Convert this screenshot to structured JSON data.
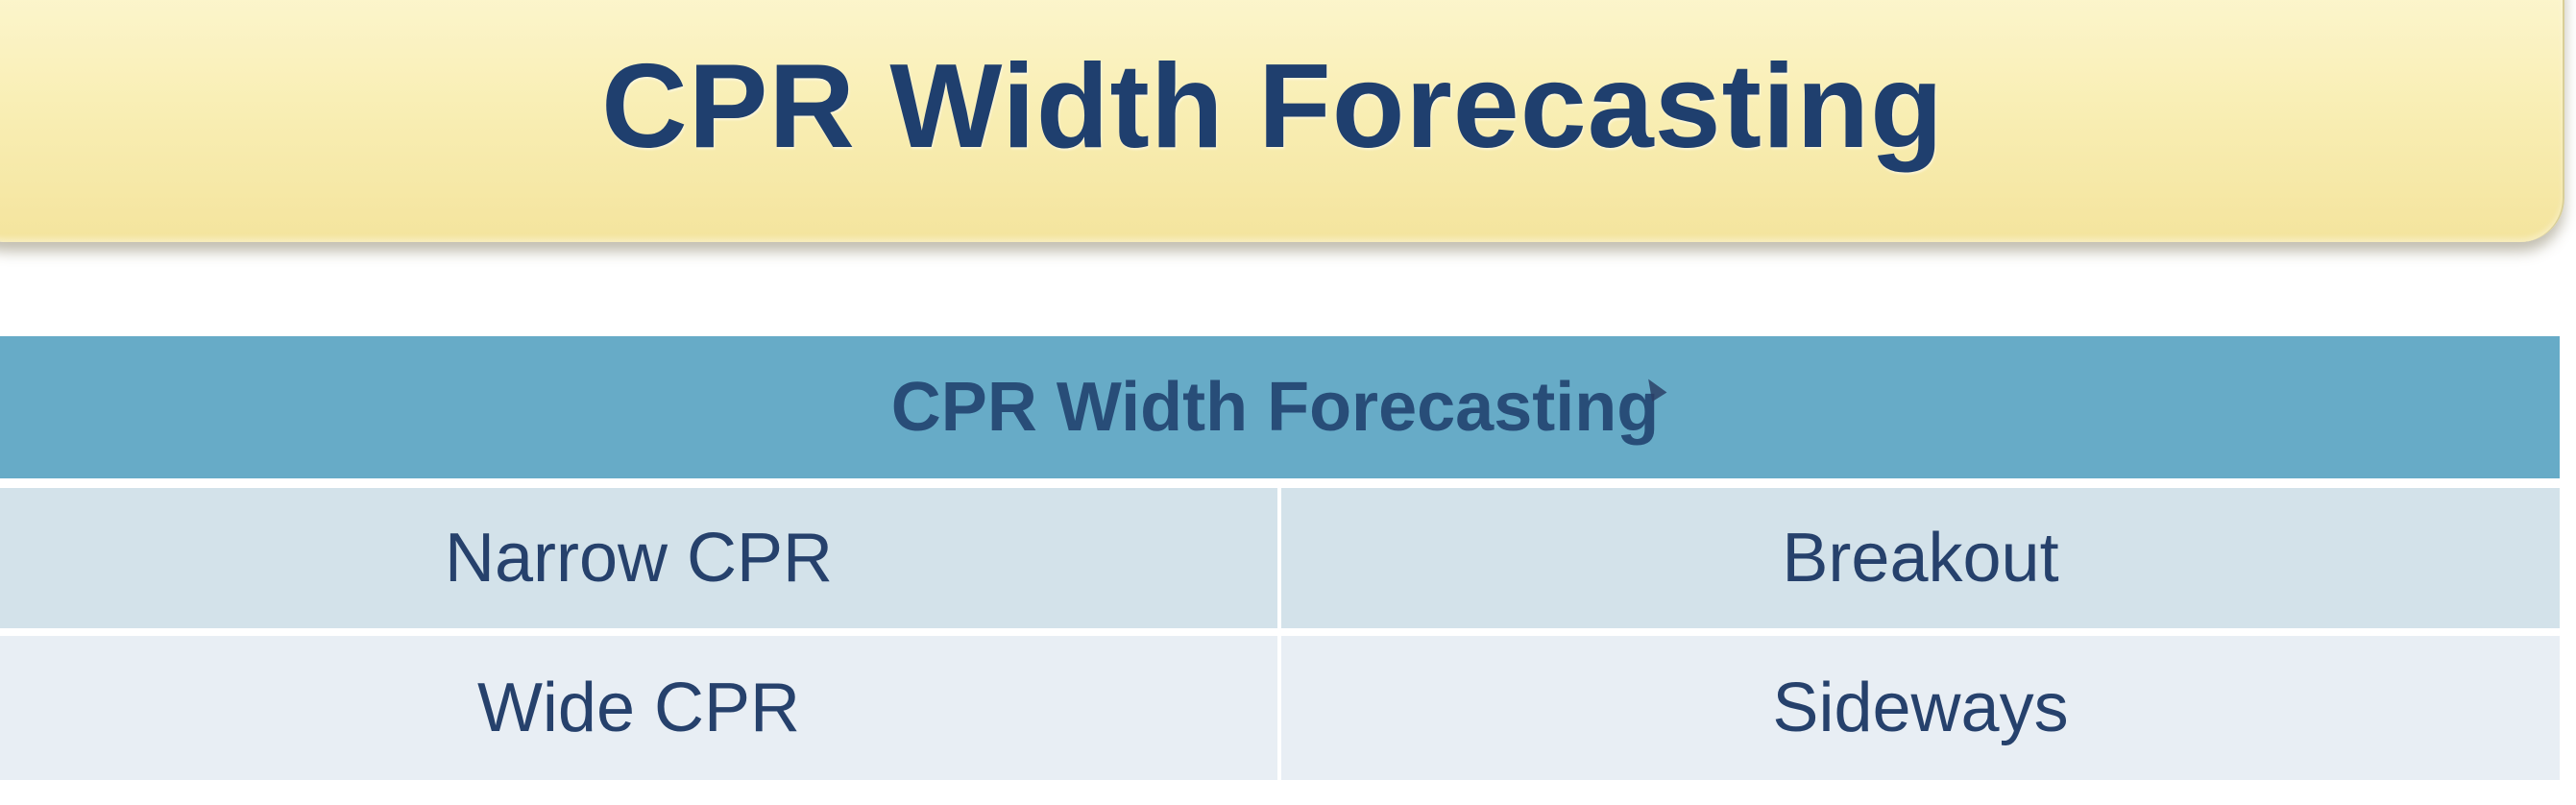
{
  "slide": {
    "title": "CPR Width Forecasting"
  },
  "table": {
    "header": "CPR Width Forecasting",
    "rows": [
      {
        "condition": "Narrow CPR",
        "outcome": "Breakout"
      },
      {
        "condition": "Wide CPR",
        "outcome": "Sideways"
      }
    ]
  },
  "colors": {
    "title_text": "#1f3f6e",
    "banner_fill": "#f9efb6",
    "table_header_fill": "#67abc7",
    "row1_fill": "#d3e2ea",
    "row2_fill": "#e8eef4",
    "cell_text": "#26416c"
  },
  "icons": {
    "cursor": "mouse-pointer-icon"
  }
}
